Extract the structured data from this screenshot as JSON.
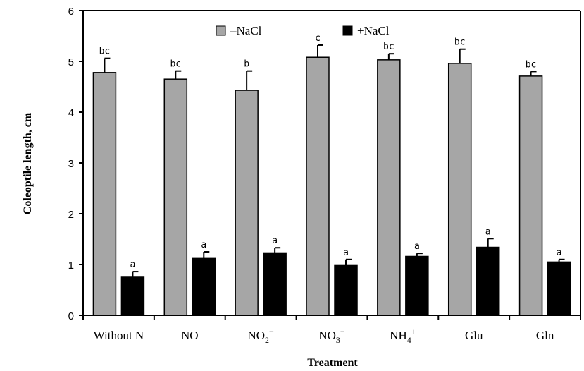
{
  "chart_data": {
    "type": "bar",
    "title": "",
    "xlabel": "Treatment",
    "ylabel": "Coleoptile length, cm",
    "ylim": [
      0,
      6
    ],
    "yticks": [
      0,
      1,
      2,
      3,
      4,
      5,
      6
    ],
    "grid": false,
    "legend_position": "top-center",
    "categories": [
      {
        "main": "Without N",
        "sub": "",
        "sup": ""
      },
      {
        "main": "NO",
        "sub": "",
        "sup": ""
      },
      {
        "main": "NO",
        "sub": "2",
        "sup": "−"
      },
      {
        "main": "NO",
        "sub": "3",
        "sup": "−"
      },
      {
        "main": "NH",
        "sub": "4",
        "sup": "+"
      },
      {
        "main": "Glu",
        "sub": "",
        "sup": ""
      },
      {
        "main": "Gln",
        "sub": "",
        "sup": ""
      }
    ],
    "series": [
      {
        "name": "–NaCl",
        "color": "#a6a6a6",
        "values": [
          4.78,
          4.65,
          4.43,
          5.08,
          5.03,
          4.96,
          4.71
        ],
        "errors": [
          0.28,
          0.16,
          0.38,
          0.24,
          0.12,
          0.28,
          0.09
        ],
        "labels": [
          "bc",
          "bc",
          "b",
          "c",
          "bc",
          "bc",
          "bc"
        ]
      },
      {
        "name": "+NaCl",
        "color": "#000000",
        "values": [
          0.75,
          1.12,
          1.23,
          0.98,
          1.16,
          1.34,
          1.05
        ],
        "errors": [
          0.11,
          0.13,
          0.1,
          0.12,
          0.06,
          0.17,
          0.05
        ],
        "labels": [
          "a",
          "a",
          "a",
          "a",
          "a",
          "a",
          "a"
        ]
      }
    ]
  }
}
